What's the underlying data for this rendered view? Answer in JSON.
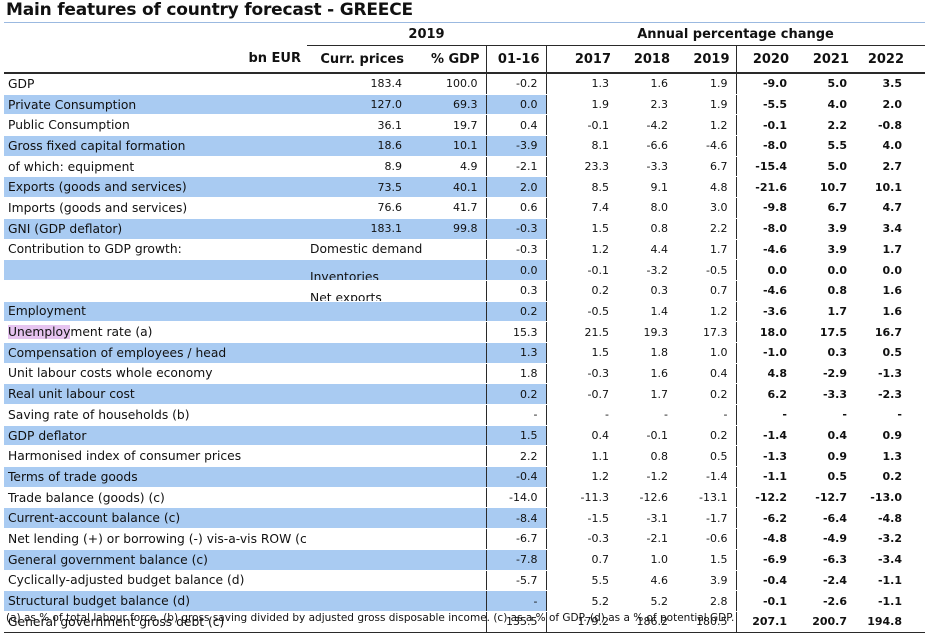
{
  "title": "Main features of country forecast - GREECE",
  "header": {
    "year_group": "2019",
    "change_group": "Annual percentage change",
    "columns": [
      "bn EUR",
      "Curr. prices",
      "% GDP",
      "01-16",
      "2017",
      "2018",
      "2019",
      "2020",
      "2021",
      "2022"
    ]
  },
  "rows": [
    {
      "label": "GDP",
      "hl": false,
      "cells": [
        "183.4",
        "100.0",
        "-0.2",
        "1.3",
        "1.6",
        "1.9",
        "-9.0",
        "5.0",
        "3.5"
      ]
    },
    {
      "label": "Private Consumption",
      "hl": true,
      "cells": [
        "127.0",
        "69.3",
        "0.0",
        "1.9",
        "2.3",
        "1.9",
        "-5.5",
        "4.0",
        "2.0"
      ]
    },
    {
      "label": "Public Consumption",
      "hl": false,
      "cells": [
        "36.1",
        "19.7",
        "0.4",
        "-0.1",
        "-4.2",
        "1.2",
        "-0.1",
        "2.2",
        "-0.8"
      ]
    },
    {
      "label": "Gross fixed capital formation",
      "hl": true,
      "cells": [
        "18.6",
        "10.1",
        "-3.9",
        "8.1",
        "-6.6",
        "-4.6",
        "-8.0",
        "5.5",
        "4.0"
      ]
    },
    {
      "label": "of which: equipment",
      "hl": false,
      "cells": [
        "8.9",
        "4.9",
        "-2.1",
        "23.3",
        "-3.3",
        "6.7",
        "-15.4",
        "5.0",
        "2.7"
      ]
    },
    {
      "label": "Exports (goods and services)",
      "hl": true,
      "cells": [
        "73.5",
        "40.1",
        "2.0",
        "8.5",
        "9.1",
        "4.8",
        "-21.6",
        "10.7",
        "10.1"
      ]
    },
    {
      "label": "Imports (goods and services)",
      "hl": false,
      "cells": [
        "76.6",
        "41.7",
        "0.6",
        "7.4",
        "8.0",
        "3.0",
        "-9.8",
        "6.7",
        "4.7"
      ]
    },
    {
      "label": "GNI (GDP deflator)",
      "hl": true,
      "cells": [
        "183.1",
        "99.8",
        "-0.3",
        "1.5",
        "0.8",
        "2.2",
        "-8.0",
        "3.9",
        "3.4"
      ]
    },
    {
      "label": "Contribution to GDP growth:",
      "sub": "Domestic demand",
      "hl": false,
      "cells": [
        "",
        "",
        "-0.3",
        "1.2",
        "4.4",
        "1.7",
        "-4.6",
        "3.9",
        "1.7"
      ]
    },
    {
      "label": "",
      "sub": "Inventories",
      "hl": true,
      "cells": [
        "",
        "",
        "0.0",
        "-0.1",
        "-3.2",
        "-0.5",
        "0.0",
        "0.0",
        "0.0"
      ]
    },
    {
      "label": "",
      "sub": "Net exports",
      "hl": false,
      "cells": [
        "",
        "",
        "0.3",
        "0.2",
        "0.3",
        "0.7",
        "-4.6",
        "0.8",
        "1.6"
      ]
    },
    {
      "label": "Employment",
      "hl": true,
      "cells": [
        "",
        "",
        "0.2",
        "-0.5",
        "1.4",
        "1.2",
        "-3.6",
        "1.7",
        "1.6"
      ]
    },
    {
      "label": "Unemployment rate (a)",
      "hl": false,
      "cells": [
        "",
        "",
        "15.3",
        "21.5",
        "19.3",
        "17.3",
        "18.0",
        "17.5",
        "16.7"
      ]
    },
    {
      "label": "Compensation of employees / head",
      "hl": true,
      "cells": [
        "",
        "",
        "1.3",
        "1.5",
        "1.8",
        "1.0",
        "-1.0",
        "0.3",
        "0.5"
      ]
    },
    {
      "label": "Unit labour costs whole economy",
      "hl": false,
      "cells": [
        "",
        "",
        "1.8",
        "-0.3",
        "1.6",
        "0.4",
        "4.8",
        "-2.9",
        "-1.3"
      ]
    },
    {
      "label": "Real unit labour cost",
      "hl": true,
      "cells": [
        "",
        "",
        "0.2",
        "-0.7",
        "1.7",
        "0.2",
        "6.2",
        "-3.3",
        "-2.3"
      ]
    },
    {
      "label": "Saving rate of households (b)",
      "hl": false,
      "cells": [
        "",
        "",
        "-",
        "-",
        "-",
        "-",
        "-",
        "-",
        "-"
      ]
    },
    {
      "label": "GDP deflator",
      "hl": true,
      "cells": [
        "",
        "",
        "1.5",
        "0.4",
        "-0.1",
        "0.2",
        "-1.4",
        "0.4",
        "0.9"
      ]
    },
    {
      "label": "Harmonised index of consumer prices",
      "hl": false,
      "cells": [
        "",
        "",
        "2.2",
        "1.1",
        "0.8",
        "0.5",
        "-1.3",
        "0.9",
        "1.3"
      ]
    },
    {
      "label": "Terms of trade goods",
      "hl": true,
      "cells": [
        "",
        "",
        "-0.4",
        "1.2",
        "-1.2",
        "-1.4",
        "-1.1",
        "0.5",
        "0.2"
      ]
    },
    {
      "label": "Trade balance (goods) (c)",
      "hl": false,
      "cells": [
        "",
        "",
        "-14.0",
        "-11.3",
        "-12.6",
        "-13.1",
        "-12.2",
        "-12.7",
        "-13.0"
      ]
    },
    {
      "label": "Current-account balance (c)",
      "hl": true,
      "cells": [
        "",
        "",
        "-8.4",
        "-1.5",
        "-3.1",
        "-1.7",
        "-6.2",
        "-6.4",
        "-4.8"
      ]
    },
    {
      "label": "Net lending (+) or borrowing (-) vis-a-vis ROW (c)",
      "hl": false,
      "cells": [
        "",
        "",
        "-6.7",
        "-0.3",
        "-2.1",
        "-0.6",
        "-4.8",
        "-4.9",
        "-3.2"
      ]
    },
    {
      "label": "General government balance (c)",
      "hl": true,
      "cells": [
        "",
        "",
        "-7.8",
        "0.7",
        "1.0",
        "1.5",
        "-6.9",
        "-6.3",
        "-3.4"
      ]
    },
    {
      "label": "Cyclically-adjusted budget balance (d)",
      "hl": false,
      "cells": [
        "",
        "",
        "-5.7",
        "5.5",
        "4.6",
        "3.9",
        "-0.4",
        "-2.4",
        "-1.1"
      ]
    },
    {
      "label": "Structural budget balance (d)",
      "hl": true,
      "cells": [
        "",
        "",
        "-",
        "5.2",
        "5.2",
        "2.8",
        "-0.1",
        "-2.6",
        "-1.1"
      ]
    },
    {
      "label": "General government gross debt (c)",
      "hl": false,
      "cells": [
        "",
        "",
        "135.5",
        "179.2",
        "186.2",
        "180.5",
        "207.1",
        "200.7",
        "194.8"
      ]
    }
  ],
  "footnote": "(a) as % of total labour force. (b) gross saving divided by adjusted gross disposable income. (c) as a % of GDP. (d) as a % of potential GDP."
}
